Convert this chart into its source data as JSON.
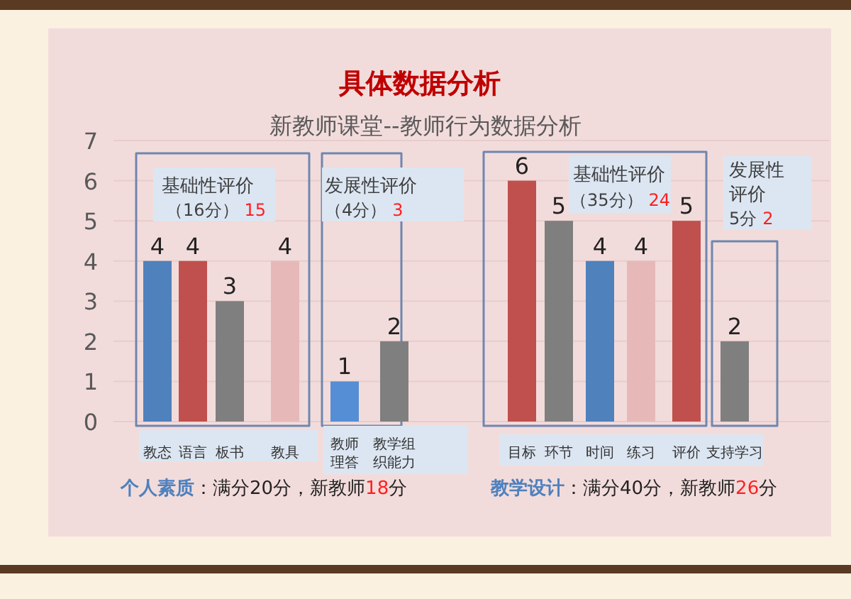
{
  "chart_data": {
    "type": "bar",
    "title": "具体数据分析",
    "subtitle": "新教师课堂--教师行为数据分析",
    "categories": [
      "教态",
      "语言",
      "板书",
      "教具",
      "教师理答",
      "教学组织能力",
      "目标",
      "环节",
      "时间",
      "练习",
      "评价",
      "支持学习"
    ],
    "values": [
      4,
      4,
      3,
      4,
      1,
      2,
      6,
      5,
      4,
      4,
      5,
      2
    ],
    "colors": [
      "#4f81bd",
      "#c0504d",
      "#7f7f7f",
      "#e6b9b8",
      "#558ed5",
      "#7f7f7f",
      "#c0504d",
      "#7f7f7f",
      "#4f81bd",
      "#e6b9b8",
      "#c0504d",
      "#7f7f7f"
    ],
    "ylim": [
      0,
      7
    ],
    "yticks": [
      0,
      1,
      2,
      3,
      4,
      5,
      6,
      7
    ],
    "grid": "y",
    "data_labels": true,
    "annotations": [
      "基础性评价",
      "（16分）",
      "15",
      "发展性评价",
      "（4分）",
      "3",
      "基础性评价",
      "（35分）",
      "24",
      "发展性",
      "评价",
      "5分",
      "2",
      "个人素质",
      "：满分20分，新教师",
      "18",
      "分",
      "教学设计",
      "：满分40分，新教师",
      "26",
      "分"
    ]
  }
}
